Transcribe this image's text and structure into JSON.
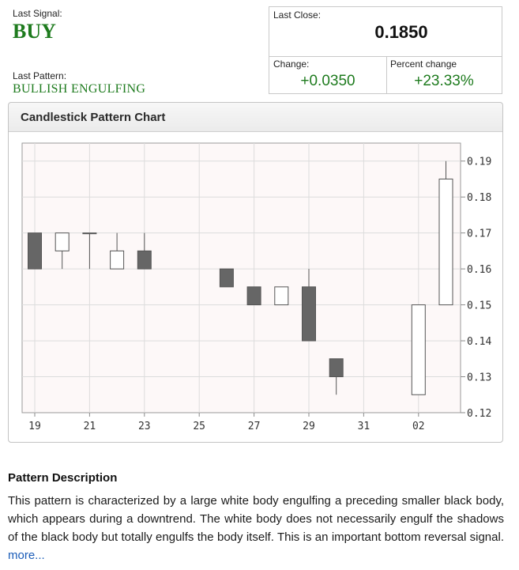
{
  "signal": {
    "label": "Last Signal:",
    "value": "BUY"
  },
  "pattern": {
    "label": "Last Pattern:",
    "value": "BULLISH ENGULFING"
  },
  "quote": {
    "last_close_label": "Last Close:",
    "last_close_value": "0.1850",
    "change_label": "Change:",
    "change_value": "+0.0350",
    "percent_label": "Percent change",
    "percent_value": "+23.33%"
  },
  "chart_panel": {
    "title": "Candlestick Pattern Chart"
  },
  "chart_data": {
    "type": "candlestick",
    "title": "Candlestick Pattern Chart",
    "xlabel": "",
    "ylabel": "",
    "ylim": [
      0.12,
      0.195
    ],
    "grid": true,
    "x_ticks": [
      "19",
      "21",
      "23",
      "25",
      "27",
      "29",
      "31",
      "02"
    ],
    "y_ticks": [
      "0.19",
      "0.18",
      "0.17",
      "0.16",
      "0.15",
      "0.14",
      "0.13",
      "0.12"
    ],
    "colors": {
      "bearish": "#666666",
      "bullish": "#ffffff",
      "outline": "#555555",
      "grid": "#dcdcdc",
      "plot_bg": "#fdf8f8"
    },
    "candles": [
      {
        "x": "19",
        "open": 0.17,
        "high": 0.17,
        "low": 0.16,
        "close": 0.16
      },
      {
        "x": "20",
        "open": 0.165,
        "high": 0.17,
        "low": 0.16,
        "close": 0.17
      },
      {
        "x": "21",
        "open": 0.17,
        "high": 0.17,
        "low": 0.16,
        "close": 0.17
      },
      {
        "x": "22",
        "open": 0.16,
        "high": 0.17,
        "low": 0.16,
        "close": 0.165
      },
      {
        "x": "23",
        "open": 0.165,
        "high": 0.17,
        "low": 0.16,
        "close": 0.16
      },
      {
        "x": "26",
        "open": 0.16,
        "high": 0.16,
        "low": 0.155,
        "close": 0.155
      },
      {
        "x": "27",
        "open": 0.155,
        "high": 0.155,
        "low": 0.15,
        "close": 0.15
      },
      {
        "x": "28",
        "open": 0.15,
        "high": 0.155,
        "low": 0.15,
        "close": 0.155
      },
      {
        "x": "29",
        "open": 0.155,
        "high": 0.16,
        "low": 0.14,
        "close": 0.14
      },
      {
        "x": "30",
        "open": 0.135,
        "high": 0.135,
        "low": 0.125,
        "close": 0.13
      },
      {
        "x": "02",
        "open": 0.125,
        "high": 0.15,
        "low": 0.125,
        "close": 0.15
      },
      {
        "x": "03",
        "open": 0.15,
        "high": 0.19,
        "low": 0.15,
        "close": 0.185
      }
    ]
  },
  "description": {
    "title": "Pattern Description",
    "text": "This pattern is characterized by a large white body engulfing a preceding smaller black body, which appears during a downtrend. The white body does not necessarily engulf the shadows of the black body but totally engulfs the body itself. This is an important bottom reversal signal. ",
    "more_link": "more..."
  }
}
